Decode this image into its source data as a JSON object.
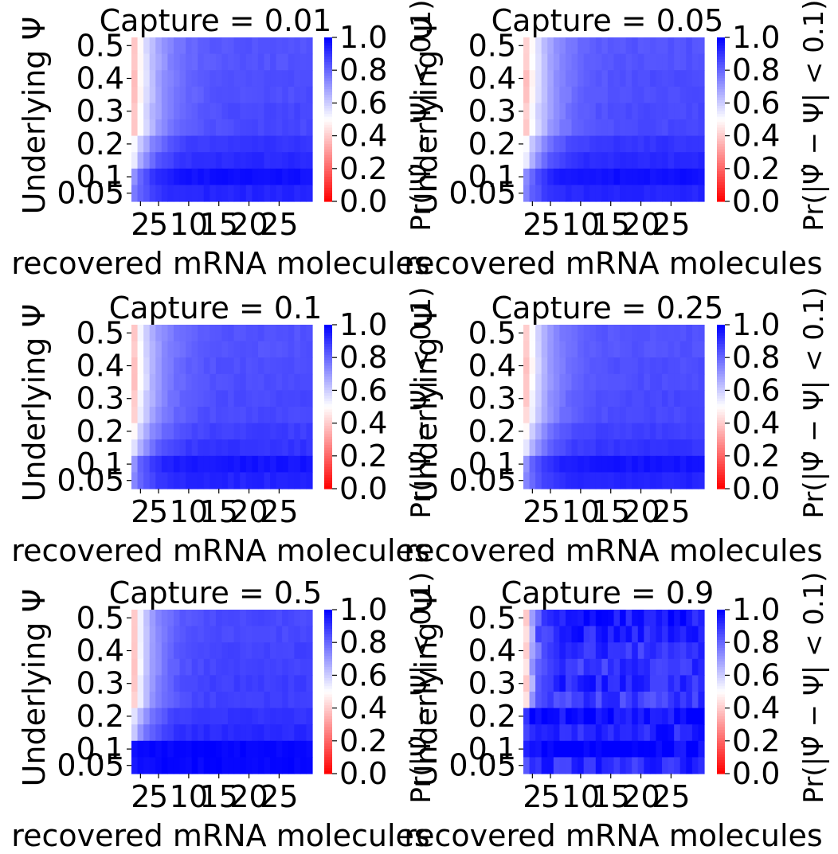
{
  "colors": {
    "low": "#ff0000",
    "mid": "#ffffff",
    "high": "#0000ff"
  },
  "shared": {
    "xlabel": "recovered mRNA molecules",
    "ylabel": "Underlying Ψ",
    "colorbar_label": "Pr(|Ψ̂ − Ψ| < 0.1)",
    "x_ticks": [
      "2",
      "5",
      "10",
      "15",
      "20",
      "25"
    ],
    "y_ticks": [
      "0.05",
      "0.1",
      "0.2",
      "0.3",
      "0.4",
      "0.5"
    ],
    "colorbar_ticks": [
      "0.0",
      "0.2",
      "0.4",
      "0.6",
      "0.8",
      "1.0"
    ]
  },
  "chart_data": [
    {
      "type": "heatmap",
      "title": "Capture = 0.01",
      "xlabel": "recovered mRNA molecules",
      "ylabel": "Underlying Ψ",
      "x_range": [
        1,
        30
      ],
      "psi_rows": [
        0.05,
        0.1,
        0.15,
        0.2,
        0.25,
        0.3,
        0.35,
        0.4,
        0.45,
        0.5
      ],
      "vmin": 0,
      "vmax": 1,
      "colormap": "bwr_r",
      "row_profiles": [
        {
          "psi": 0.5,
          "start": 0.4,
          "end": 0.84,
          "rate": 0.25
        },
        {
          "psi": 0.45,
          "start": 0.4,
          "end": 0.84,
          "rate": 0.25
        },
        {
          "psi": 0.4,
          "start": 0.38,
          "end": 0.85,
          "rate": 0.25
        },
        {
          "psi": 0.35,
          "start": 0.38,
          "end": 0.85,
          "rate": 0.25
        },
        {
          "psi": 0.3,
          "start": 0.4,
          "end": 0.86,
          "rate": 0.25
        },
        {
          "psi": 0.25,
          "start": 0.4,
          "end": 0.86,
          "rate": 0.25
        },
        {
          "psi": 0.2,
          "start": 0.5,
          "end": 0.9,
          "rate": 0.3
        },
        {
          "psi": 0.15,
          "start": 0.55,
          "end": 0.92,
          "rate": 0.35
        },
        {
          "psi": 0.1,
          "start": 0.72,
          "end": 0.97,
          "rate": 0.4
        },
        {
          "psi": 0.05,
          "start": 0.75,
          "end": 0.93,
          "rate": 0.4
        }
      ]
    },
    {
      "type": "heatmap",
      "title": "Capture = 0.05",
      "xlabel": "recovered mRNA molecules",
      "ylabel": "Underlying Ψ",
      "x_range": [
        1,
        30
      ],
      "psi_rows": [
        0.05,
        0.1,
        0.15,
        0.2,
        0.25,
        0.3,
        0.35,
        0.4,
        0.45,
        0.5
      ],
      "vmin": 0,
      "vmax": 1,
      "colormap": "bwr_r",
      "row_profiles": [
        {
          "psi": 0.5,
          "start": 0.4,
          "end": 0.84,
          "rate": 0.25
        },
        {
          "psi": 0.45,
          "start": 0.4,
          "end": 0.84,
          "rate": 0.25
        },
        {
          "psi": 0.4,
          "start": 0.38,
          "end": 0.85,
          "rate": 0.25
        },
        {
          "psi": 0.35,
          "start": 0.38,
          "end": 0.85,
          "rate": 0.25
        },
        {
          "psi": 0.3,
          "start": 0.4,
          "end": 0.86,
          "rate": 0.25
        },
        {
          "psi": 0.25,
          "start": 0.4,
          "end": 0.86,
          "rate": 0.25
        },
        {
          "psi": 0.2,
          "start": 0.5,
          "end": 0.9,
          "rate": 0.3
        },
        {
          "psi": 0.15,
          "start": 0.55,
          "end": 0.92,
          "rate": 0.35
        },
        {
          "psi": 0.1,
          "start": 0.72,
          "end": 0.97,
          "rate": 0.4
        },
        {
          "psi": 0.05,
          "start": 0.75,
          "end": 0.93,
          "rate": 0.4
        }
      ]
    },
    {
      "type": "heatmap",
      "title": "Capture = 0.1",
      "xlabel": "recovered mRNA molecules",
      "ylabel": "Underlying Ψ",
      "x_range": [
        1,
        30
      ],
      "psi_rows": [
        0.05,
        0.1,
        0.15,
        0.2,
        0.25,
        0.3,
        0.35,
        0.4,
        0.45,
        0.5
      ],
      "vmin": 0,
      "vmax": 1,
      "colormap": "bwr_r",
      "row_profiles": [
        {
          "psi": 0.5,
          "start": 0.4,
          "end": 0.84,
          "rate": 0.28
        },
        {
          "psi": 0.45,
          "start": 0.4,
          "end": 0.84,
          "rate": 0.28
        },
        {
          "psi": 0.4,
          "start": 0.38,
          "end": 0.85,
          "rate": 0.28
        },
        {
          "psi": 0.35,
          "start": 0.38,
          "end": 0.85,
          "rate": 0.28
        },
        {
          "psi": 0.3,
          "start": 0.4,
          "end": 0.86,
          "rate": 0.28
        },
        {
          "psi": 0.25,
          "start": 0.42,
          "end": 0.86,
          "rate": 0.28
        },
        {
          "psi": 0.2,
          "start": 0.5,
          "end": 0.88,
          "rate": 0.3
        },
        {
          "psi": 0.15,
          "start": 0.55,
          "end": 0.9,
          "rate": 0.35
        },
        {
          "psi": 0.1,
          "start": 0.72,
          "end": 0.96,
          "rate": 0.4
        },
        {
          "psi": 0.05,
          "start": 0.74,
          "end": 0.93,
          "rate": 0.4
        }
      ]
    },
    {
      "type": "heatmap",
      "title": "Capture = 0.25",
      "xlabel": "recovered mRNA molecules",
      "ylabel": "Underlying Ψ",
      "x_range": [
        1,
        30
      ],
      "psi_rows": [
        0.05,
        0.1,
        0.15,
        0.2,
        0.25,
        0.3,
        0.35,
        0.4,
        0.45,
        0.5
      ],
      "vmin": 0,
      "vmax": 1,
      "colormap": "bwr_r",
      "row_profiles": [
        {
          "psi": 0.5,
          "start": 0.4,
          "end": 0.84,
          "rate": 0.28
        },
        {
          "psi": 0.45,
          "start": 0.4,
          "end": 0.84,
          "rate": 0.28
        },
        {
          "psi": 0.4,
          "start": 0.38,
          "end": 0.85,
          "rate": 0.28
        },
        {
          "psi": 0.35,
          "start": 0.38,
          "end": 0.85,
          "rate": 0.28
        },
        {
          "psi": 0.3,
          "start": 0.4,
          "end": 0.86,
          "rate": 0.28
        },
        {
          "psi": 0.25,
          "start": 0.42,
          "end": 0.86,
          "rate": 0.28
        },
        {
          "psi": 0.2,
          "start": 0.5,
          "end": 0.88,
          "rate": 0.3
        },
        {
          "psi": 0.15,
          "start": 0.55,
          "end": 0.9,
          "rate": 0.35
        },
        {
          "psi": 0.1,
          "start": 0.72,
          "end": 0.96,
          "rate": 0.4
        },
        {
          "psi": 0.05,
          "start": 0.74,
          "end": 0.93,
          "rate": 0.4
        }
      ]
    },
    {
      "type": "heatmap",
      "title": "Capture = 0.5",
      "xlabel": "recovered mRNA molecules",
      "ylabel": "Underlying Ψ",
      "x_range": [
        1,
        30
      ],
      "psi_rows": [
        0.05,
        0.1,
        0.15,
        0.2,
        0.25,
        0.3,
        0.35,
        0.4,
        0.45,
        0.5
      ],
      "vmin": 0,
      "vmax": 1,
      "colormap": "bwr_r",
      "row_profiles": [
        {
          "psi": 0.5,
          "start": 0.4,
          "end": 0.86,
          "rate": 0.32
        },
        {
          "psi": 0.45,
          "start": 0.4,
          "end": 0.86,
          "rate": 0.32
        },
        {
          "psi": 0.4,
          "start": 0.38,
          "end": 0.87,
          "rate": 0.32
        },
        {
          "psi": 0.35,
          "start": 0.38,
          "end": 0.87,
          "rate": 0.32
        },
        {
          "psi": 0.3,
          "start": 0.4,
          "end": 0.88,
          "rate": 0.32
        },
        {
          "psi": 0.25,
          "start": 0.42,
          "end": 0.88,
          "rate": 0.32
        },
        {
          "psi": 0.2,
          "start": 0.55,
          "end": 0.9,
          "rate": 0.35
        },
        {
          "psi": 0.15,
          "start": 0.6,
          "end": 0.92,
          "rate": 0.38
        },
        {
          "psi": 0.1,
          "start": 0.98,
          "end": 0.99,
          "rate": 0.5
        },
        {
          "psi": 0.05,
          "start": 0.96,
          "end": 0.99,
          "rate": 0.5
        }
      ]
    },
    {
      "type": "heatmap",
      "title": "Capture = 0.9",
      "xlabel": "recovered mRNA molecules",
      "ylabel": "Underlying Ψ",
      "x_range": [
        1,
        30
      ],
      "psi_rows": [
        0.05,
        0.1,
        0.15,
        0.2,
        0.25,
        0.3,
        0.35,
        0.4,
        0.45,
        0.5
      ],
      "vmin": 0,
      "vmax": 1,
      "colormap": "bwr_r",
      "row_profiles": [
        {
          "psi": 0.5,
          "start": 0.4,
          "end": 0.95,
          "rate": 0.8
        },
        {
          "psi": 0.45,
          "start": 0.4,
          "end": 0.93,
          "rate": 0.8
        },
        {
          "psi": 0.4,
          "start": 0.4,
          "end": 0.9,
          "rate": 0.8
        },
        {
          "psi": 0.35,
          "start": 0.4,
          "end": 0.9,
          "rate": 0.8
        },
        {
          "psi": 0.3,
          "start": 0.42,
          "end": 0.92,
          "rate": 0.8
        },
        {
          "psi": 0.25,
          "start": 0.48,
          "end": 0.88,
          "rate": 0.8
        },
        {
          "psi": 0.2,
          "start": 0.95,
          "end": 0.98,
          "rate": 0.9
        },
        {
          "psi": 0.15,
          "start": 0.88,
          "end": 0.94,
          "rate": 0.9
        },
        {
          "psi": 0.1,
          "start": 0.99,
          "end": 1.0,
          "rate": 0.9
        },
        {
          "psi": 0.05,
          "start": 0.82,
          "end": 0.92,
          "rate": 0.9
        }
      ]
    }
  ]
}
